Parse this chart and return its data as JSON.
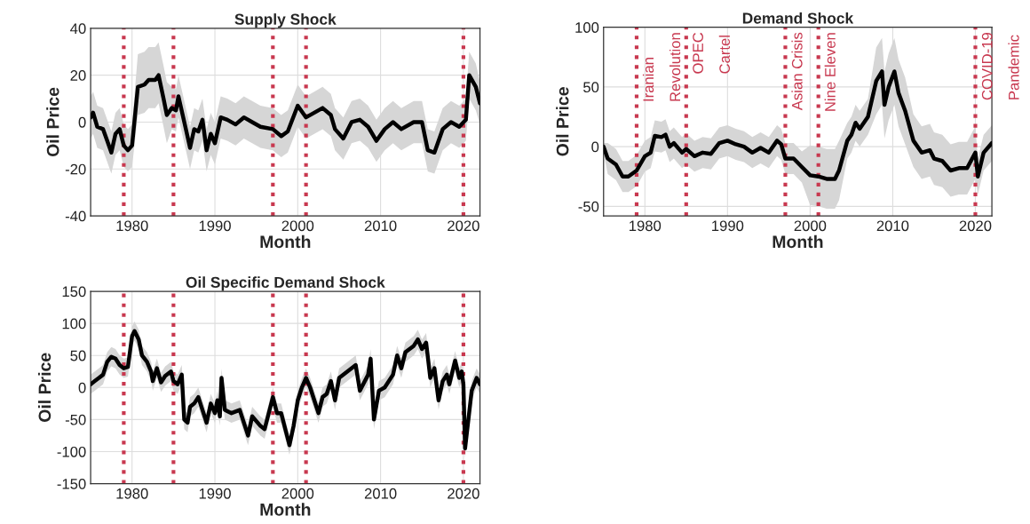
{
  "chart_data": [
    {
      "type": "line",
      "title": "Supply Shock",
      "xlabel": "Month",
      "ylabel": "Oil Price",
      "xlim": [
        1975,
        2022
      ],
      "xticks": [
        1980,
        1990,
        2000,
        2010,
        2020
      ],
      "ylim": [
        -40,
        40
      ],
      "yticks": [
        -40,
        -20,
        0,
        20,
        40
      ],
      "grid": true,
      "line_style": "solid",
      "series": [
        {
          "color": "#000000",
          "x": [
            1975,
            1975.3,
            1975.8,
            1976.5,
            1977,
            1977.5,
            1978,
            1978.5,
            1979,
            1979.5,
            1980,
            1980.7,
            1981.5,
            1982,
            1982.8,
            1983.2,
            1983.8,
            1984.2,
            1984.8,
            1985.3,
            1985.6,
            1986.5,
            1987,
            1987.5,
            1988,
            1988.5,
            1989,
            1989.5,
            1990,
            1990.7,
            1991.5,
            1992.5,
            1993.5,
            1994.5,
            1995.5,
            1997,
            1998,
            1998.8,
            2000,
            2001,
            2002,
            2003,
            2004,
            2004.5,
            2005.5,
            2006.5,
            2007.5,
            2008.5,
            2009.5,
            2010.5,
            2011.5,
            2012.5,
            2014,
            2015,
            2015.7,
            2016.5,
            2017.5,
            2018.5,
            2019.5,
            2020.3,
            2020.7,
            2021.5,
            2022
          ],
          "values": [
            2,
            4,
            -2,
            -3,
            -8,
            -13,
            -5,
            -3,
            -10,
            -12,
            -10,
            15,
            16,
            18,
            18,
            20,
            10,
            3,
            6,
            5,
            11,
            -3,
            -11,
            -3,
            -4,
            1,
            -12,
            -5,
            -9,
            2,
            1,
            -1,
            2,
            0,
            -2,
            -3,
            -6,
            -4,
            7,
            2,
            4,
            6,
            3,
            -3,
            -7,
            0,
            1,
            -2,
            -8,
            -3,
            0,
            -3,
            0,
            0,
            -12,
            -13,
            -3,
            0,
            -2,
            1,
            20,
            15,
            8
          ],
          "lower": [
            -7,
            -5,
            -11,
            -12,
            -17,
            -22,
            -14,
            -12,
            -19,
            -21,
            -19,
            3,
            4,
            6,
            6,
            8,
            -2,
            -9,
            -3,
            -4,
            2,
            -12,
            -20,
            -12,
            -13,
            -8,
            -21,
            -14,
            -18,
            -7,
            -8,
            -10,
            -7,
            -9,
            -11,
            -12,
            -15,
            -13,
            -2,
            -7,
            -5,
            -3,
            -6,
            -12,
            -16,
            -9,
            -8,
            -11,
            -17,
            -12,
            -9,
            -12,
            -9,
            -9,
            -21,
            -22,
            -12,
            -9,
            -11,
            -8,
            10,
            5,
            -1
          ],
          "upper": [
            11,
            13,
            7,
            6,
            1,
            -4,
            4,
            6,
            -1,
            -3,
            -1,
            29,
            30,
            32,
            32,
            34,
            24,
            17,
            15,
            14,
            20,
            6,
            -2,
            6,
            5,
            10,
            -3,
            4,
            0,
            11,
            10,
            8,
            11,
            9,
            7,
            6,
            3,
            5,
            16,
            11,
            13,
            15,
            12,
            6,
            2,
            9,
            10,
            7,
            1,
            6,
            9,
            6,
            9,
            9,
            -3,
            -4,
            6,
            9,
            7,
            10,
            30,
            25,
            17
          ]
        }
      ],
      "ref_lines": [
        {
          "axis": "x",
          "value": 1979,
          "color": "#c8384f",
          "line_style": "dotted"
        },
        {
          "axis": "x",
          "value": 1985,
          "color": "#c8384f",
          "line_style": "dotted"
        },
        {
          "axis": "x",
          "value": 1997,
          "color": "#c8384f",
          "line_style": "dotted"
        },
        {
          "axis": "x",
          "value": 2001,
          "color": "#c8384f",
          "line_style": "dotted"
        },
        {
          "axis": "x",
          "value": 2020,
          "color": "#c8384f",
          "line_style": "dotted"
        }
      ]
    },
    {
      "type": "line",
      "title": "Demand Shock",
      "xlabel": "Month",
      "ylabel": "Oil Price",
      "xlim": [
        1975,
        2022
      ],
      "xticks": [
        1980,
        1990,
        2000,
        2010,
        2020
      ],
      "ylim": [
        -58,
        100
      ],
      "yticks": [
        -50,
        0,
        50,
        100
      ],
      "grid": true,
      "line_style": "solid",
      "series": [
        {
          "color": "#000000",
          "x": [
            1975,
            1975.5,
            1976.5,
            1977.3,
            1978,
            1979,
            1980,
            1980.7,
            1981.2,
            1982,
            1982.5,
            1983,
            1983.5,
            1984.5,
            1985,
            1986,
            1987,
            1988,
            1989,
            1990,
            1991,
            1992,
            1993,
            1994,
            1995,
            1996,
            1996.5,
            1997,
            1998,
            1999,
            2000,
            2001,
            2002,
            2003,
            2003.5,
            2004.5,
            2005,
            2005.5,
            2006,
            2007,
            2008,
            2008.7,
            2009,
            2009.5,
            2010.2,
            2010.7,
            2011.5,
            2012.5,
            2013.5,
            2014.5,
            2015,
            2016,
            2017,
            2018,
            2019,
            2020,
            2020.3,
            2021,
            2022
          ],
          "values": [
            0,
            -10,
            -15,
            -25,
            -25,
            -20,
            -8,
            -5,
            9,
            8,
            10,
            0,
            3,
            -5,
            -2,
            -8,
            -5,
            -6,
            3,
            5,
            2,
            0,
            -5,
            -1,
            -5,
            5,
            2,
            -10,
            -10,
            -17,
            -24,
            -25,
            -27,
            -27,
            -20,
            5,
            10,
            20,
            15,
            25,
            55,
            63,
            35,
            50,
            63,
            45,
            30,
            5,
            -5,
            -3,
            -10,
            -12,
            -20,
            -18,
            -18,
            -5,
            -25,
            -5,
            3
          ],
          "lower": [
            -5,
            -23,
            -28,
            -38,
            -38,
            -33,
            -21,
            -18,
            -4,
            -5,
            -3,
            -13,
            -10,
            -18,
            -15,
            -21,
            -18,
            -19,
            -10,
            -8,
            -11,
            -13,
            -18,
            -14,
            -18,
            -8,
            -11,
            -23,
            -23,
            -30,
            -49,
            -50,
            -52,
            -52,
            -45,
            -10,
            -5,
            5,
            0,
            10,
            27,
            35,
            7,
            22,
            35,
            17,
            2,
            -17,
            -27,
            -25,
            -32,
            -34,
            -42,
            -40,
            -40,
            -27,
            -40,
            -20,
            -12
          ],
          "upper": [
            3,
            3,
            -2,
            -12,
            -12,
            -7,
            5,
            8,
            22,
            21,
            23,
            13,
            16,
            8,
            11,
            5,
            8,
            7,
            16,
            18,
            15,
            13,
            8,
            12,
            8,
            18,
            15,
            3,
            3,
            -4,
            1,
            0,
            -2,
            -2,
            5,
            20,
            25,
            35,
            30,
            40,
            83,
            91,
            63,
            78,
            91,
            73,
            58,
            27,
            17,
            19,
            12,
            10,
            2,
            4,
            4,
            17,
            -10,
            10,
            18
          ]
        }
      ],
      "ref_lines": [
        {
          "axis": "x",
          "value": 1979,
          "label": "Iranian\nRevolution",
          "color": "#c8384f",
          "line_style": "dotted"
        },
        {
          "axis": "x",
          "value": 1985,
          "label": "OPEC\nCartel",
          "color": "#c8384f",
          "line_style": "dotted"
        },
        {
          "axis": "x",
          "value": 1997,
          "label": "Asian Crisis",
          "color": "#c8384f",
          "line_style": "dotted"
        },
        {
          "axis": "x",
          "value": 2001,
          "label": "Nine Eleven",
          "color": "#c8384f",
          "line_style": "dotted"
        },
        {
          "axis": "x",
          "value": 2020,
          "label": "COVID-19\nPandemic",
          "color": "#c8384f",
          "line_style": "dotted"
        }
      ]
    },
    {
      "type": "line",
      "title": "Oil Specific Demand Shock",
      "xlabel": "Month",
      "ylabel": "Oil Price",
      "xlim": [
        1975,
        2022
      ],
      "xticks": [
        1980,
        1990,
        2000,
        2010,
        2020
      ],
      "ylim": [
        -150,
        150
      ],
      "yticks": [
        -150,
        -100,
        -50,
        0,
        50,
        100,
        150
      ],
      "grid": true,
      "line_style": "solid",
      "series": [
        {
          "color": "#000000",
          "x": [
            1975,
            1975.5,
            1976,
            1976.5,
            1977,
            1977.5,
            1978,
            1978.5,
            1979,
            1979.5,
            1980,
            1980.3,
            1980.8,
            1981.2,
            1981.8,
            1982.3,
            1982.5,
            1983,
            1983.5,
            1984,
            1984.7,
            1985,
            1985.5,
            1986,
            1986.3,
            1986.7,
            1987,
            1987.5,
            1988,
            1988.5,
            1989,
            1989.5,
            1990,
            1990.3,
            1990.6,
            1990.8,
            1991.2,
            1992,
            1993,
            1994,
            1994.5,
            1995.5,
            1996,
            1996.7,
            1997,
            1997.5,
            1998,
            1998.5,
            1999,
            1999.5,
            2000,
            2000.5,
            2001,
            2001.5,
            2002,
            2002.5,
            2003,
            2003.5,
            2004,
            2004.5,
            2005,
            2006,
            2007,
            2007.5,
            2008.5,
            2008.8,
            2009.2,
            2009.8,
            2010.5,
            2011.5,
            2012,
            2012.5,
            2013,
            2014,
            2014.5,
            2015,
            2015.5,
            2016,
            2016.5,
            2017,
            2017.5,
            2018,
            2018.3,
            2019,
            2019.5,
            2019.8,
            2020,
            2020.2,
            2020.6,
            2021,
            2021.6,
            2022
          ],
          "values": [
            5,
            10,
            15,
            20,
            40,
            48,
            45,
            35,
            30,
            32,
            80,
            88,
            75,
            50,
            40,
            25,
            10,
            30,
            8,
            18,
            25,
            10,
            5,
            20,
            -50,
            -55,
            -30,
            -25,
            -15,
            -35,
            -55,
            -25,
            -40,
            -20,
            -45,
            15,
            -35,
            -40,
            -35,
            -75,
            -45,
            -60,
            -65,
            -30,
            -15,
            -40,
            -40,
            -65,
            -90,
            -60,
            -20,
            0,
            15,
            0,
            -20,
            -40,
            -15,
            -10,
            10,
            -20,
            15,
            25,
            35,
            -5,
            20,
            45,
            -50,
            -5,
            0,
            20,
            50,
            30,
            55,
            65,
            75,
            60,
            70,
            15,
            30,
            -20,
            10,
            20,
            5,
            42,
            15,
            25,
            5,
            -95,
            -50,
            -5,
            15,
            5
          ],
          "lower": [
            -10,
            -5,
            0,
            5,
            25,
            33,
            30,
            20,
            15,
            17,
            65,
            73,
            60,
            35,
            25,
            10,
            -5,
            15,
            -7,
            3,
            10,
            -5,
            -10,
            5,
            -65,
            -70,
            -45,
            -40,
            -30,
            -50,
            -70,
            -40,
            -55,
            -35,
            -60,
            0,
            -50,
            -55,
            -50,
            -90,
            -60,
            -75,
            -80,
            -45,
            -30,
            -55,
            -55,
            -80,
            -105,
            -75,
            -35,
            -15,
            0,
            -15,
            -35,
            -55,
            -30,
            -25,
            -5,
            -35,
            0,
            10,
            20,
            -20,
            5,
            30,
            -65,
            -20,
            -15,
            5,
            35,
            15,
            40,
            50,
            60,
            45,
            55,
            0,
            15,
            -35,
            -5,
            5,
            -10,
            27,
            0,
            10,
            -10,
            -110,
            -65,
            -20,
            0,
            -10
          ],
          "upper": [
            20,
            25,
            30,
            35,
            55,
            63,
            60,
            50,
            45,
            47,
            95,
            103,
            90,
            65,
            55,
            40,
            25,
            45,
            23,
            33,
            40,
            25,
            20,
            35,
            -35,
            -40,
            -15,
            -10,
            0,
            -20,
            -40,
            -10,
            -25,
            -5,
            -30,
            30,
            -20,
            -25,
            -20,
            -60,
            -30,
            -45,
            -50,
            -15,
            0,
            -25,
            -25,
            -50,
            -75,
            -45,
            -5,
            15,
            30,
            15,
            -5,
            -25,
            0,
            5,
            25,
            -5,
            30,
            40,
            50,
            10,
            35,
            60,
            -35,
            10,
            15,
            35,
            65,
            45,
            70,
            80,
            90,
            75,
            85,
            30,
            45,
            -5,
            25,
            35,
            20,
            57,
            30,
            40,
            20,
            -80,
            -35,
            10,
            30,
            20
          ]
        }
      ],
      "ref_lines": [
        {
          "axis": "x",
          "value": 1979,
          "color": "#c8384f",
          "line_style": "dotted"
        },
        {
          "axis": "x",
          "value": 1985,
          "color": "#c8384f",
          "line_style": "dotted"
        },
        {
          "axis": "x",
          "value": 1997,
          "color": "#c8384f",
          "line_style": "dotted"
        },
        {
          "axis": "x",
          "value": 2001,
          "color": "#c8384f",
          "line_style": "dotted"
        },
        {
          "axis": "x",
          "value": 2020,
          "color": "#c8384f",
          "line_style": "dotted"
        }
      ]
    }
  ]
}
